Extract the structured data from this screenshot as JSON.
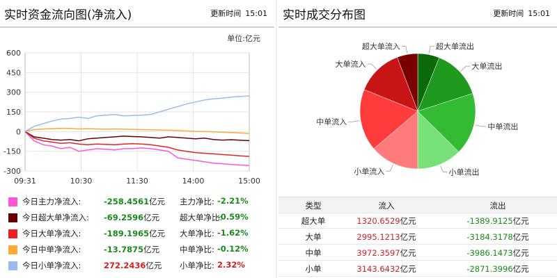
{
  "left": {
    "title": "实时资金流向图(净流入)",
    "updated_label": "更新时间",
    "updated_time": "15:01",
    "unit_label": "单位:",
    "unit_value": "亿元",
    "chart_data": {
      "type": "line",
      "xlim_labels": [
        "09:31",
        "10:30",
        "11:30",
        "14:00",
        "15:00"
      ],
      "y_ticks": [
        600,
        450,
        300,
        150,
        0,
        -150,
        -300
      ],
      "ylim": [
        -300,
        600
      ],
      "series": [
        {
          "name": "今日主力净流入",
          "color": "#ff55dd",
          "x": [
            0,
            4,
            8,
            12,
            16,
            20,
            24,
            28,
            32,
            36,
            40,
            44,
            48,
            52,
            56,
            60,
            64,
            68,
            72,
            76,
            80,
            84,
            88,
            92,
            96,
            100
          ],
          "y": [
            0,
            -70,
            -100,
            -110,
            -130,
            -120,
            -150,
            -140,
            -130,
            -135,
            -140,
            -130,
            -130,
            -125,
            -130,
            -140,
            -150,
            -200,
            -210,
            -220,
            -230,
            -240,
            -245,
            -250,
            -255,
            -258
          ]
        },
        {
          "name": "今日超大单净流入",
          "color": "#660000",
          "x": [
            0,
            4,
            8,
            12,
            16,
            20,
            24,
            28,
            32,
            36,
            40,
            44,
            48,
            52,
            56,
            60,
            64,
            68,
            72,
            76,
            80,
            84,
            88,
            92,
            96,
            100
          ],
          "y": [
            0,
            -40,
            -50,
            -60,
            -65,
            -60,
            -70,
            -55,
            -50,
            -45,
            -40,
            -35,
            -38,
            -40,
            -45,
            -50,
            -40,
            -45,
            -50,
            -55,
            -50,
            -60,
            -65,
            -62,
            -66,
            -69
          ]
        },
        {
          "name": "今日大单净流入",
          "color": "#e82222",
          "x": [
            0,
            4,
            8,
            12,
            16,
            20,
            24,
            28,
            32,
            36,
            40,
            44,
            48,
            52,
            56,
            60,
            64,
            68,
            72,
            76,
            80,
            84,
            88,
            92,
            96,
            100
          ],
          "y": [
            0,
            -50,
            -70,
            -80,
            -90,
            -85,
            -95,
            -100,
            -95,
            -98,
            -100,
            -95,
            -92,
            -95,
            -100,
            -110,
            -120,
            -140,
            -150,
            -160,
            -165,
            -170,
            -175,
            -180,
            -185,
            -189
          ]
        },
        {
          "name": "今日中单净流入",
          "color": "#ffaa33",
          "x": [
            0,
            4,
            8,
            12,
            16,
            20,
            24,
            28,
            32,
            36,
            40,
            44,
            48,
            52,
            56,
            60,
            64,
            68,
            72,
            76,
            80,
            84,
            88,
            92,
            96,
            100
          ],
          "y": [
            0,
            15,
            20,
            22,
            25,
            24,
            20,
            22,
            20,
            18,
            20,
            18,
            16,
            15,
            14,
            12,
            10,
            8,
            5,
            2,
            0,
            -2,
            -5,
            -8,
            -10,
            -14
          ]
        },
        {
          "name": "今日小单净流入",
          "color": "#99bbee",
          "x": [
            0,
            4,
            8,
            12,
            16,
            20,
            24,
            28,
            32,
            36,
            40,
            44,
            48,
            52,
            56,
            60,
            64,
            68,
            72,
            76,
            80,
            84,
            88,
            92,
            96,
            100
          ],
          "y": [
            0,
            40,
            60,
            80,
            95,
            100,
            110,
            100,
            120,
            125,
            130,
            120,
            122,
            125,
            130,
            150,
            170,
            190,
            210,
            225,
            240,
            250,
            255,
            262,
            268,
            272
          ]
        }
      ]
    },
    "legend": [
      {
        "name": "今日主力净流入:",
        "value": "-258.4561",
        "unit": "亿元",
        "ratio_label": "主力净比:",
        "ratio": "-2.21%",
        "color": "#ff55dd",
        "sign": "neg"
      },
      {
        "name": "今日超大单净流入:",
        "value": "-69.2596",
        "unit": "亿元",
        "ratio_label": "超大单净比:",
        "ratio": "-0.59%",
        "color": "#660000",
        "sign": "neg"
      },
      {
        "name": "今日大单净流入:",
        "value": "-189.1965",
        "unit": "亿元",
        "ratio_label": "大单净比:",
        "ratio": "-1.62%",
        "color": "#e82222",
        "sign": "neg"
      },
      {
        "name": "今日中单净流入:",
        "value": "-13.7875",
        "unit": "亿元",
        "ratio_label": "中单净比:",
        "ratio": "-0.12%",
        "color": "#ffaa33",
        "sign": "neg"
      },
      {
        "name": "今日小单净流入:",
        "value": "272.2436",
        "unit": "亿元",
        "ratio_label": "小单净比:",
        "ratio": "2.32%",
        "color": "#99bbee",
        "sign": "pos"
      }
    ]
  },
  "right": {
    "title": "实时成交分布图",
    "updated_label": "更新时间",
    "updated_time": "15:01",
    "pie": {
      "type": "pie",
      "slices": [
        {
          "label": "超大单流出",
          "value": 1389.9125,
          "color": "#0a6a0a"
        },
        {
          "label": "大单流出",
          "value": 3184.3178,
          "color": "#1f9a1f"
        },
        {
          "label": "中单流出",
          "value": 3986.1473,
          "color": "#33bb33"
        },
        {
          "label": "小单流出",
          "value": 2871.3996,
          "color": "#77e077"
        },
        {
          "label": "小单流入",
          "value": 3143.6432,
          "color": "#ff7b7b"
        },
        {
          "label": "中单流入",
          "value": 3972.3597,
          "color": "#ff3b3b"
        },
        {
          "label": "大单流入",
          "value": 2995.1213,
          "color": "#c81414"
        },
        {
          "label": "超大单流入",
          "value": 1320.6529,
          "color": "#7a0000"
        }
      ]
    },
    "table": {
      "headers": [
        "类型",
        "流入",
        "流出"
      ],
      "rows": [
        {
          "type": "超大单",
          "in": "1320.6529",
          "out": "-1389.9125"
        },
        {
          "type": "大单",
          "in": "2995.1213",
          "out": "-3184.3178"
        },
        {
          "type": "中单",
          "in": "3972.3597",
          "out": "-3986.1473"
        },
        {
          "type": "小单",
          "in": "3143.6432",
          "out": "-2871.3996"
        }
      ],
      "unit": "亿元"
    }
  }
}
